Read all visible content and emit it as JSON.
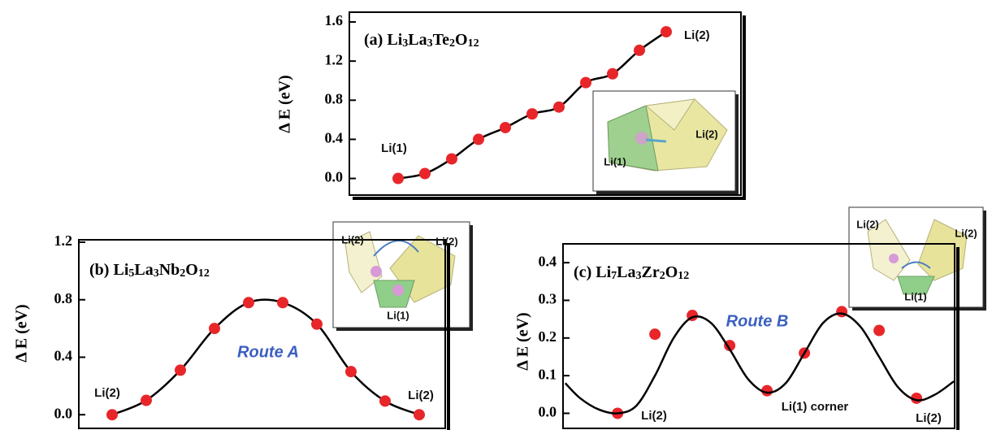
{
  "chart_data": [
    {
      "type": "line",
      "title": "(a) Li3La3Te2O12",
      "ylabel": "Δ E (eV)",
      "values": [
        0,
        0.05,
        0.2,
        0.4,
        0.52,
        0.66,
        0.73,
        0.98,
        1.07,
        1.31,
        1.5
      ],
      "color": "#e8262a",
      "line_color": "#000000",
      "ylim": [
        -0.17,
        1.7
      ],
      "yticks": [
        {
          "value": 0,
          "label": "0.0"
        },
        0.4,
        0.8,
        1.2,
        1.6
      ],
      "annotations": [
        "Li(1)",
        "Li(2)"
      ],
      "inset_labels": [
        "Li(1)",
        "Li(2)"
      ]
    },
    {
      "type": "line",
      "title": "(b) Li5La3Nb2O12",
      "ylabel": "Δ E (eV)",
      "values": [
        0,
        0.1,
        0.31,
        0.6,
        0.78,
        0.78,
        0.63,
        0.3,
        0.095,
        0
      ],
      "color": "#e8262a",
      "line_color": "#000000",
      "ylim": [
        -0.095,
        1.217
      ],
      "yticks": [
        {
          "value": 0,
          "label": "0.0"
        },
        0.4,
        0.8,
        1.2
      ],
      "annotations": [
        "Li(2)",
        "Li(2)",
        "Route A"
      ],
      "inset_labels": [
        "Li(2)",
        "Li(2)",
        "Li(1)"
      ]
    },
    {
      "type": "line",
      "title": "(c) Li7La3Zr2O12",
      "ylabel": "Δ E (eV)",
      "series": [
        {
          "style": "markers",
          "color": "#e8262a",
          "x": [
            0,
            1,
            2,
            3,
            4,
            5,
            6,
            7,
            8
          ],
          "values": [
            0,
            0.21,
            0.26,
            0.18,
            0.06,
            0.16,
            0.27,
            0.22,
            0.04
          ]
        },
        {
          "style": "line",
          "color": "#000000",
          "x": [
            -1.4,
            -1,
            -0.5,
            0,
            0.5,
            1,
            1.5,
            2,
            2.5,
            3,
            3.5,
            4,
            4.5,
            5,
            5.5,
            6,
            6.5,
            7,
            7.5,
            8,
            8.5,
            9
          ],
          "values": [
            0.08,
            0.04,
            0.01,
            0.0,
            0.02,
            0.1,
            0.2,
            0.255,
            0.24,
            0.17,
            0.09,
            0.055,
            0.08,
            0.16,
            0.24,
            0.265,
            0.23,
            0.15,
            0.07,
            0.035,
            0.05,
            0.085
          ]
        }
      ],
      "xlim": [
        -1.46,
        9.02
      ],
      "ylim": [
        -0.04,
        0.45
      ],
      "yticks": [
        {
          "value": 0,
          "label": "0.0"
        },
        0.1,
        0.2,
        0.3,
        0.4
      ],
      "annotations": [
        "Li(2)",
        "Li(1) corner",
        "Li(2)",
        "Route B"
      ],
      "inset_labels": [
        "Li(2)",
        "Li(2)",
        "Li(1)"
      ]
    }
  ]
}
